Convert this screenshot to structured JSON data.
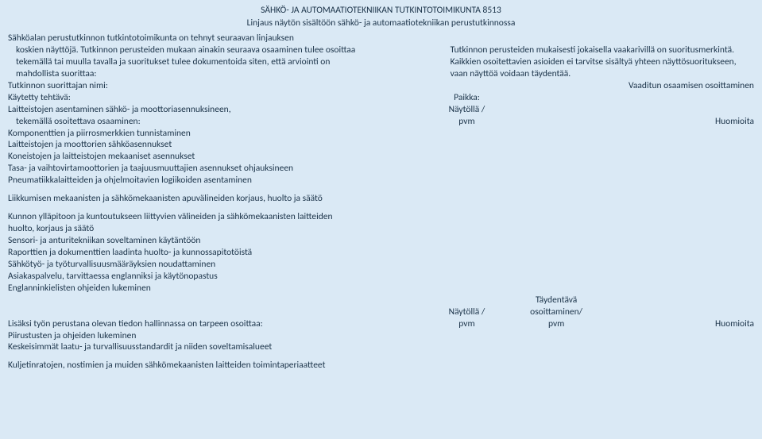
{
  "colors": {
    "background": "#dae9f5",
    "text": "#1a3248"
  },
  "typography": {
    "font_family": "Calibri",
    "font_size_pt": 9,
    "line_height": 1.3
  },
  "header": {
    "line1": "SÄHKÖ- JA AUTOMAATIOTEKNIIKAN TUTKINTOTOIMIKUNTA 8513",
    "line2": "Linjaus näytön sisältöön sähkö- ja automaatiotekniikan perustutkinnossa"
  },
  "intro_left": [
    "Sähköalan perustutkinnon tutkintotoimikunta on tehnyt seuraavan linjauksen",
    "koskien näyttöjä. Tutkinnon perusteiden mukaan ainakin seuraava osaaminen tulee osoittaa",
    "tekemällä tai muulla tavalla ja suoritukset tulee dokumentoida siten, että arviointi on",
    "mahdollista suorittaa:"
  ],
  "intro_right": [
    "Tutkinnon perusteiden mukaisesti jokaisella vaakarivillä on suoritusmerkintä.",
    "Kaikkien osoitettavien asioiden ei tarvitse sisältyä yhteen näyttösuoritukseen,",
    "vaan näyttöä voidaan täydentää."
  ],
  "row_labels": {
    "suorittaja": "Tutkinnon suorittajan nimi:",
    "vaaditun": "Vaaditun osaamisen osoittaminen",
    "tehtava": "Käytetty tehtävä:",
    "paikka": "Paikka:",
    "laitteistojen": "Laitteistojen asentaminen sähkö- ja moottoriasennuksineen,",
    "naytolla": "Näytöllä /",
    "tekemalla": "tekemällä osoitettava osaaminen:",
    "pvm": "pvm",
    "huomioita": "Huomioita"
  },
  "task_items": [
    "Komponenttien ja piirrosmerkkien tunnistaminen",
    "Laitteistojen ja moottorien sähköasennukset",
    "Koneistojen ja laitteistojen mekaaniset asennukset",
    "Tasa- ja vaihtovirtamoottorien ja taajuusmuuttajien asennukset ohjauksineen",
    "Pneumatiikkalaitteiden ja ohjelmoitavien logiikoiden asentaminen"
  ],
  "section2": "Liikkumisen mekaanisten ja sähkömekaanisten apuvälineiden korjaus, huolto ja säätö",
  "section3": [
    "Kunnon ylläpitoon ja kuntoutukseen liittyvien välineiden ja sähkömekaanisten laitteiden",
    " huolto, korjaus ja säätö",
    "Sensori- ja anturitekniikan soveltaminen käytäntöön",
    "Raporttien ja dokumenttien laadinta huolto- ja kunnossapitotöistä",
    "Sähkötyö- ja työturvallisuusmääräyksien noudattaminen",
    "Asiakaspalvelu, tarvittaessa englanniksi ja käytönopastus",
    "Englanninkielisten ohjeiden lukeminen"
  ],
  "footer": {
    "taydentava1": "Täydentävä",
    "naytolla": "Näytöllä /",
    "osoittaminen": "osoittaminen/",
    "lisaksi": "Lisäksi työn perustana olevan tiedon hallinnassa on tarpeen osoittaa:",
    "pvm": "pvm",
    "huomioita": "Huomioita",
    "items": [
      "Piirustusten ja ohjeiden lukeminen",
      "Keskeisimmät laatu- ja turvallisuusstandardit ja niiden soveltamisalueet"
    ],
    "last": "Kuljetinratojen, nostimien ja muiden sähkömekaanisten laitteiden toimintaperiaatteet"
  }
}
